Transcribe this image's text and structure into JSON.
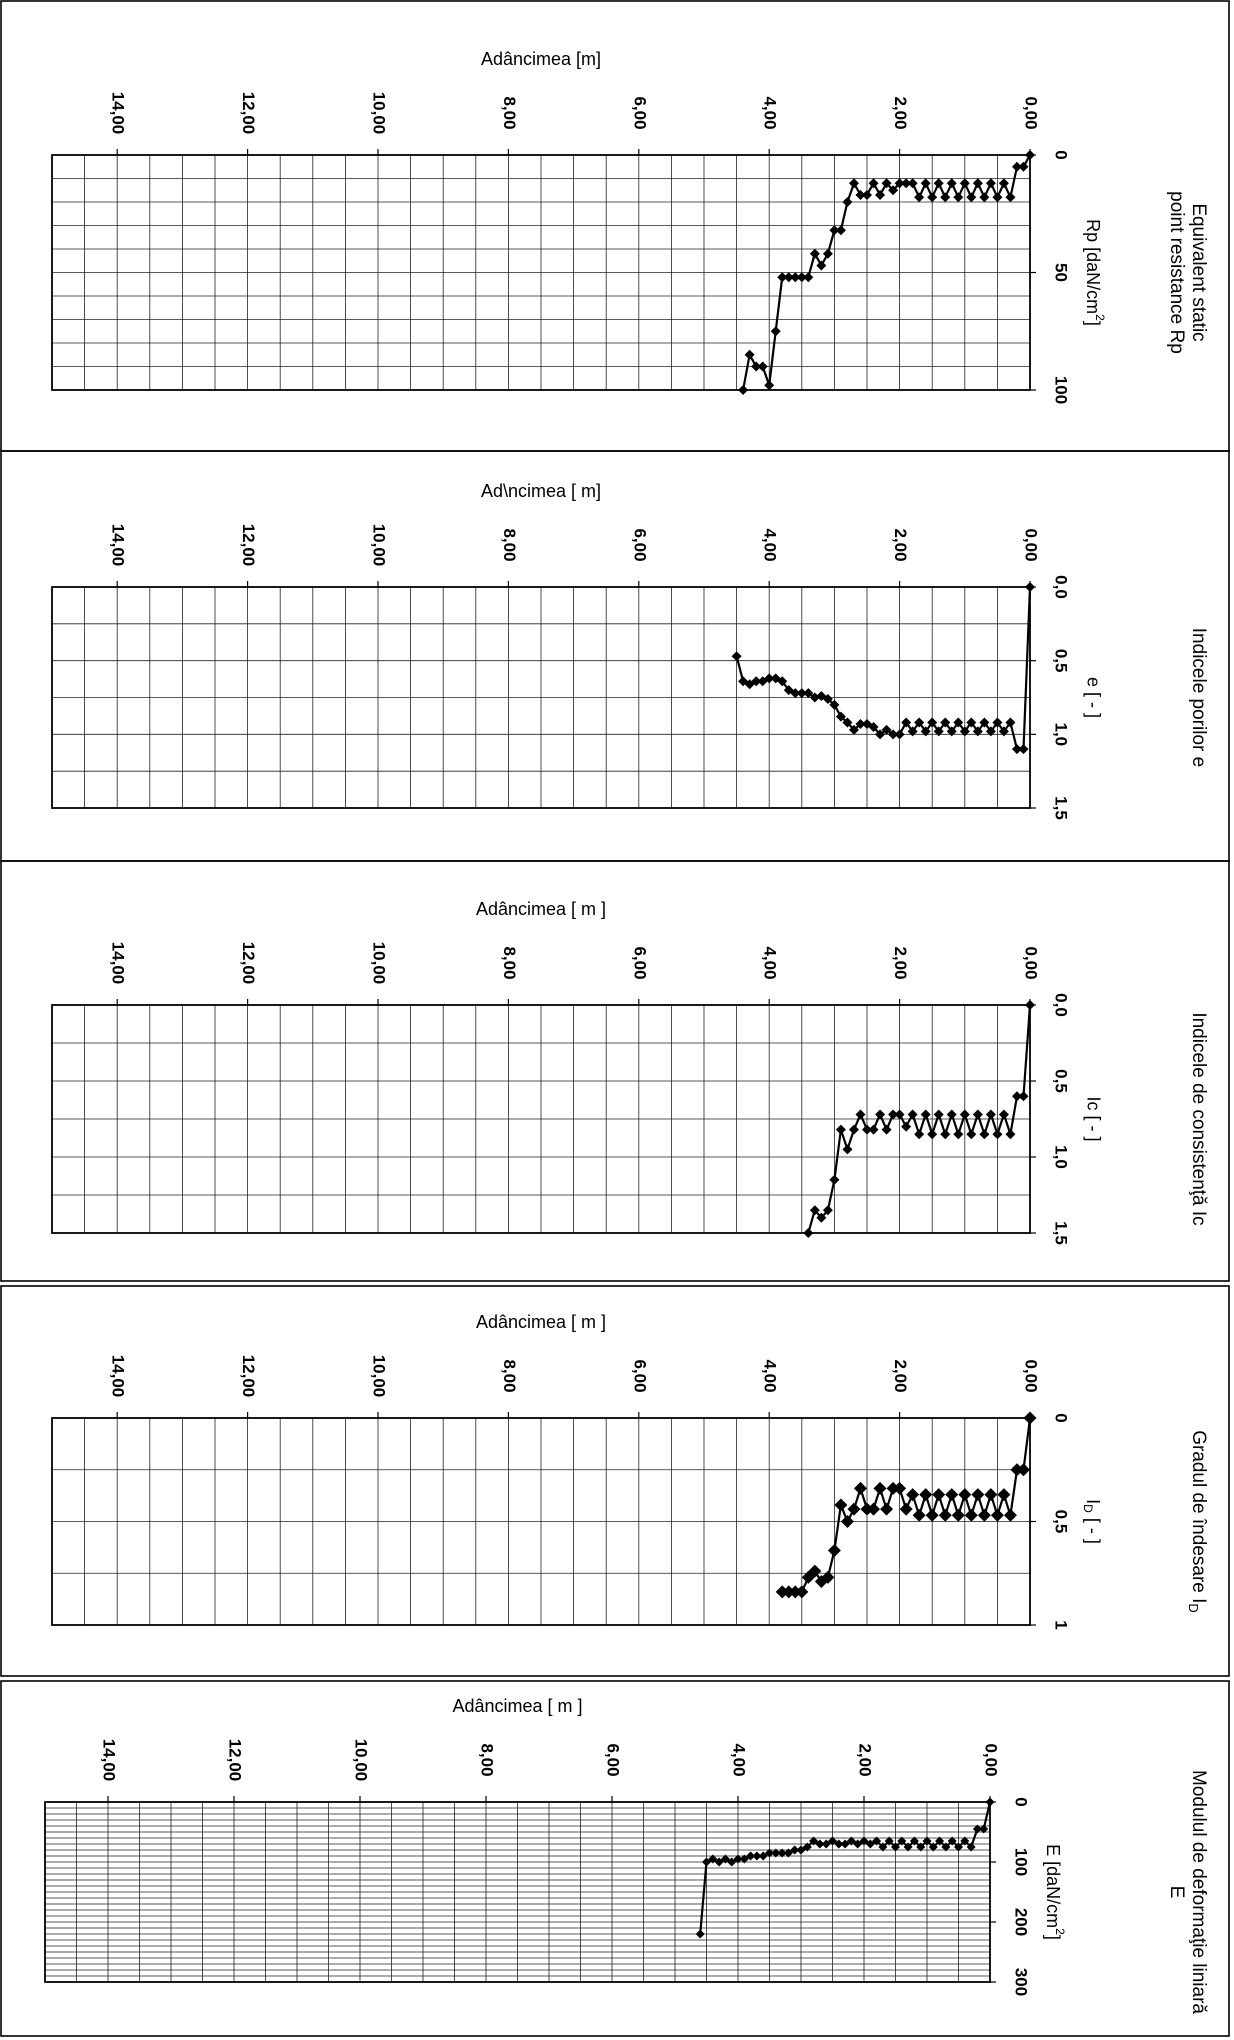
{
  "chart_data": [
    {
      "type": "line",
      "title": [
        "Equivalent static",
        "point resistance Rp"
      ],
      "xlabel": "Adâncimea  [m]",
      "ylabel": "Rp [daN/cm²]",
      "ylabel_main": "Rp [daN/cm",
      "ylabel_sup": "2",
      "ylabel_tail": "]",
      "xlim": [
        0,
        15
      ],
      "ylim": [
        0,
        100
      ],
      "x_ticks": [
        "0,00",
        "2,00",
        "4,00",
        "6,00",
        "8,00",
        "10,00",
        "12,00",
        "14,00"
      ],
      "y_ticks": [
        "0",
        "50",
        "100"
      ],
      "y_tick_values": [
        0,
        50,
        100
      ],
      "minor_rows": 10,
      "series": [
        {
          "x": [
            0.0,
            0.1,
            0.2,
            0.3,
            0.4,
            0.5,
            0.6,
            0.7,
            0.8,
            0.9,
            1.0,
            1.1,
            1.2,
            1.3,
            1.4,
            1.5,
            1.6,
            1.7,
            1.8,
            1.9,
            2.0,
            2.1,
            2.2,
            2.3,
            2.4,
            2.5,
            2.6,
            2.7,
            2.8,
            2.9,
            3.0,
            3.1,
            3.2,
            3.3,
            3.4,
            3.5,
            3.6,
            3.7,
            3.8,
            3.9,
            4.0,
            4.1,
            4.2,
            4.3,
            4.4
          ],
          "y": [
            0,
            5,
            5,
            18,
            12,
            18,
            12,
            18,
            12,
            18,
            12,
            18,
            12,
            18,
            12,
            18,
            12,
            18,
            12,
            12,
            12,
            15,
            12,
            17,
            12,
            17,
            17,
            12,
            20,
            32,
            32,
            42,
            47,
            42,
            52,
            52,
            52,
            52,
            52,
            75,
            98,
            90,
            90,
            85,
            100
          ]
        }
      ]
    },
    {
      "type": "line",
      "title": [
        "Indicele porilor  e"
      ],
      "xlabel": "Ad\\ncimea  [ m]",
      "ylabel": "e [ - ]",
      "xlim": [
        0,
        15
      ],
      "ylim": [
        0,
        1.5
      ],
      "x_ticks": [
        "0,00",
        "2,00",
        "4,00",
        "6,00",
        "8,00",
        "10,00",
        "12,00",
        "14,00"
      ],
      "y_ticks": [
        "0,0",
        "0,5",
        "1,0",
        "1,5"
      ],
      "y_tick_values": [
        0,
        0.5,
        1.0,
        1.5
      ],
      "minor_rows": 6,
      "series": [
        {
          "x": [
            0.0,
            0.1,
            0.2,
            0.3,
            0.4,
            0.5,
            0.6,
            0.7,
            0.8,
            0.9,
            1.0,
            1.1,
            1.2,
            1.3,
            1.4,
            1.5,
            1.6,
            1.7,
            1.8,
            1.9,
            2.0,
            2.1,
            2.2,
            2.3,
            2.4,
            2.5,
            2.6,
            2.7,
            2.8,
            2.9,
            3.0,
            3.1,
            3.2,
            3.3,
            3.4,
            3.5,
            3.6,
            3.7,
            3.8,
            3.9,
            4.0,
            4.1,
            4.2,
            4.3,
            4.4,
            4.5
          ],
          "y": [
            0.0,
            1.1,
            1.1,
            0.92,
            0.98,
            0.92,
            0.98,
            0.92,
            0.98,
            0.92,
            0.98,
            0.92,
            0.98,
            0.92,
            0.98,
            0.92,
            0.98,
            0.92,
            0.98,
            0.92,
            1.0,
            1.0,
            0.97,
            1.0,
            0.95,
            0.93,
            0.93,
            0.97,
            0.92,
            0.88,
            0.8,
            0.76,
            0.74,
            0.75,
            0.72,
            0.72,
            0.72,
            0.7,
            0.64,
            0.62,
            0.62,
            0.64,
            0.64,
            0.66,
            0.64,
            0.47
          ]
        }
      ]
    },
    {
      "type": "line",
      "title": [
        "Indicele de consistenţă  Ic"
      ],
      "xlabel": "Adâncimea  [ m ]",
      "ylabel": "Ic  [ - ]",
      "xlim": [
        0,
        15
      ],
      "ylim": [
        0,
        1.5
      ],
      "x_ticks": [
        "0,00",
        "2,00",
        "4,00",
        "6,00",
        "8,00",
        "10,00",
        "12,00",
        "14,00"
      ],
      "y_ticks": [
        "0,0",
        "0,5",
        "1,0",
        "1,5"
      ],
      "y_tick_values": [
        0,
        0.5,
        1.0,
        1.5
      ],
      "minor_rows": 6,
      "series": [
        {
          "x": [
            0.0,
            0.1,
            0.2,
            0.3,
            0.4,
            0.5,
            0.6,
            0.7,
            0.8,
            0.9,
            1.0,
            1.1,
            1.2,
            1.3,
            1.4,
            1.5,
            1.6,
            1.7,
            1.8,
            1.9,
            2.0,
            2.1,
            2.2,
            2.3,
            2.4,
            2.5,
            2.6,
            2.7,
            2.8,
            2.9,
            3.0,
            3.1,
            3.2,
            3.3,
            3.4
          ],
          "y": [
            0.0,
            0.6,
            0.6,
            0.85,
            0.72,
            0.85,
            0.72,
            0.85,
            0.72,
            0.85,
            0.72,
            0.85,
            0.72,
            0.85,
            0.72,
            0.85,
            0.72,
            0.85,
            0.72,
            0.8,
            0.72,
            0.72,
            0.82,
            0.72,
            0.82,
            0.82,
            0.72,
            0.82,
            0.95,
            0.82,
            1.15,
            1.35,
            1.4,
            1.35,
            1.5
          ]
        }
      ]
    },
    {
      "type": "line",
      "title": [
        "Gradul de îndesare  I",
        "D"
      ],
      "xlabel": "Adâncimea  [ m ]",
      "ylabel": "ID  [ - ]",
      "ylabel_main": "I",
      "ylabel_sub": "D",
      "ylabel_tail": "  [ - ]",
      "xlim": [
        0,
        15
      ],
      "ylim": [
        0,
        1
      ],
      "x_ticks": [
        "0,00",
        "2,00",
        "4,00",
        "6,00",
        "8,00",
        "10,00",
        "12,00",
        "14,00"
      ],
      "y_ticks": [
        "0",
        "0,5",
        "1"
      ],
      "y_tick_values": [
        0,
        0.5,
        1.0
      ],
      "minor_rows": 4,
      "series": [
        {
          "x": [
            0.0,
            0.1,
            0.2,
            0.3,
            0.4,
            0.5,
            0.6,
            0.7,
            0.8,
            0.9,
            1.0,
            1.1,
            1.2,
            1.3,
            1.4,
            1.5,
            1.6,
            1.7,
            1.8,
            1.9,
            2.0,
            2.1,
            2.2,
            2.3,
            2.4,
            2.5,
            2.6,
            2.7,
            2.8,
            2.9,
            3.0,
            3.1,
            3.2,
            3.3,
            3.4,
            3.5,
            3.6,
            3.7,
            3.8
          ],
          "y": [
            0.0,
            0.25,
            0.25,
            0.47,
            0.37,
            0.47,
            0.37,
            0.47,
            0.37,
            0.47,
            0.37,
            0.47,
            0.37,
            0.47,
            0.37,
            0.47,
            0.37,
            0.47,
            0.37,
            0.44,
            0.34,
            0.34,
            0.44,
            0.34,
            0.44,
            0.44,
            0.34,
            0.44,
            0.5,
            0.42,
            0.64,
            0.77,
            0.79,
            0.74,
            0.77,
            0.84,
            0.84,
            0.84,
            0.84
          ]
        }
      ]
    },
    {
      "type": "line",
      "title": [
        "Modulul de deformaţie liniară",
        "E"
      ],
      "xlabel": "Adâncimea  [ m ]",
      "ylabel": "E  [daN/cm²]",
      "ylabel_main": "E  [daN/cm",
      "ylabel_sup": "2",
      "ylabel_tail": "]",
      "xlim": [
        0,
        15
      ],
      "ylim": [
        0,
        300
      ],
      "x_ticks": [
        "0,00",
        "2,00",
        "4,00",
        "6,00",
        "8,00",
        "10,00",
        "12,00",
        "14,00"
      ],
      "y_ticks": [
        "0",
        "100",
        "200",
        "300"
      ],
      "y_tick_values": [
        0,
        100,
        200,
        300
      ],
      "minor_rows": 30,
      "series": [
        {
          "x": [
            0.0,
            0.1,
            0.2,
            0.3,
            0.4,
            0.5,
            0.6,
            0.7,
            0.8,
            0.9,
            1.0,
            1.1,
            1.2,
            1.3,
            1.4,
            1.5,
            1.6,
            1.7,
            1.8,
            1.9,
            2.0,
            2.1,
            2.2,
            2.3,
            2.4,
            2.5,
            2.6,
            2.7,
            2.8,
            2.9,
            3.0,
            3.1,
            3.2,
            3.3,
            3.4,
            3.5,
            3.6,
            3.7,
            3.8,
            3.9,
            4.0,
            4.1,
            4.2,
            4.3,
            4.4,
            4.5,
            4.6
          ],
          "y": [
            0,
            45,
            45,
            75,
            65,
            75,
            65,
            75,
            65,
            75,
            65,
            75,
            65,
            75,
            65,
            75,
            65,
            75,
            65,
            70,
            65,
            70,
            65,
            70,
            70,
            65,
            70,
            70,
            65,
            75,
            80,
            80,
            85,
            85,
            85,
            85,
            90,
            90,
            90,
            95,
            95,
            100,
            95,
            100,
            95,
            100,
            220
          ]
        }
      ]
    }
  ]
}
